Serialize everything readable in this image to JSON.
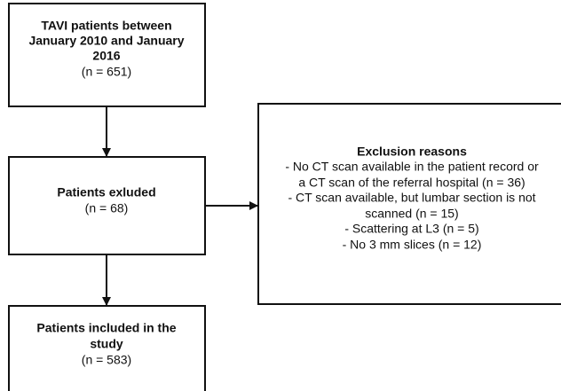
{
  "nodes": [
    {
      "title": [
        "TAVI patients between",
        "January 2010 and January",
        "2016"
      ],
      "count": "(n = 651)"
    },
    {
      "title": [
        "Patients exluded"
      ],
      "count": "(n = 68)"
    },
    {
      "title": [
        "Patients included in the",
        "study"
      ],
      "count": "(n = 583)"
    },
    {
      "title": [
        "Exclusion reasons"
      ],
      "lines": [
        "- No CT scan available in the patient record or",
        "a CT scan of the referral hospital (n = 36)",
        "- CT scan available, but lumbar section is not",
        "scanned (n = 15)",
        "- Scattering at L3 (n = 5)",
        "- No 3 mm slices (n = 12)"
      ]
    }
  ]
}
